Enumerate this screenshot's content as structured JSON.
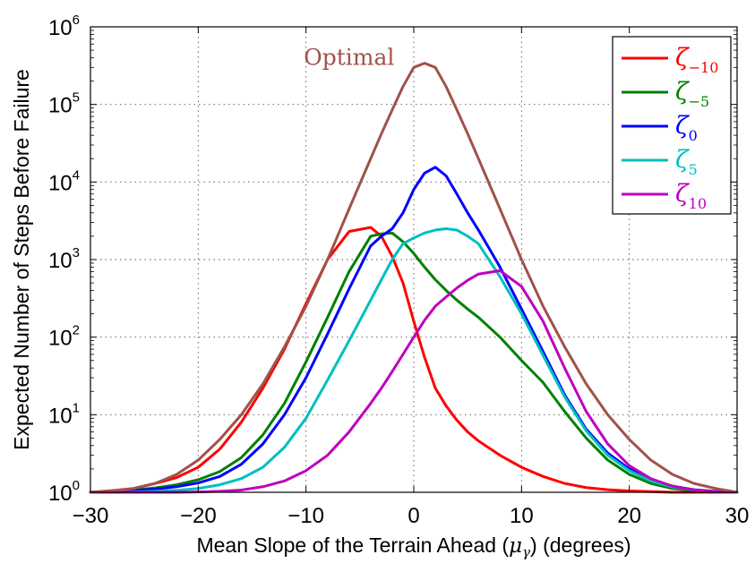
{
  "chart_data": {
    "type": "line",
    "title": "",
    "xlabel": "Mean Slope of the Terrain Ahead",
    "xlabel_symbol": "μ",
    "xlabel_symbol_sub": "γ",
    "xlabel_unit": "(degrees)",
    "ylabel": "Expected Number of Steps Before Failure",
    "xlim": [
      -30,
      30
    ],
    "ylim": [
      1,
      1000000
    ],
    "yscale": "log",
    "grid": true,
    "legend_position": "top-right",
    "x_ticks": [
      -30,
      -20,
      -10,
      0,
      10,
      20,
      30
    ],
    "x_tick_labels": [
      "−30",
      "−20",
      "−10",
      "0",
      "10",
      "20",
      "30"
    ],
    "y_ticks": [
      1,
      10,
      100,
      1000,
      10000,
      100000,
      1000000
    ],
    "y_tick_base": "10",
    "y_tick_exponents": [
      "0",
      "1",
      "2",
      "3",
      "4",
      "5",
      "6"
    ],
    "annotations": [
      {
        "text": "Optimal",
        "x": -6,
        "y": 400000,
        "color": "#A0524A"
      }
    ],
    "x": [
      -30,
      -28,
      -26,
      -24,
      -22,
      -20,
      -18,
      -16,
      -14,
      -12,
      -10,
      -8,
      -6,
      -4,
      -3,
      -2,
      -1,
      0,
      1,
      2,
      3,
      4,
      5,
      6,
      8,
      10,
      12,
      14,
      16,
      18,
      20,
      22,
      24,
      26,
      28,
      30
    ],
    "series": [
      {
        "name": "ζ",
        "subscript": "−10",
        "color": "#FF0000",
        "values": [
          1.0,
          1.05,
          1.12,
          1.3,
          1.55,
          2.1,
          3.6,
          8,
          22,
          70,
          270,
          1000,
          2300,
          2600,
          2000,
          1100,
          500,
          160,
          55,
          22,
          13,
          8.5,
          6.0,
          4.6,
          3.0,
          2.1,
          1.6,
          1.3,
          1.15,
          1.08,
          1.04,
          1.02,
          1.0,
          1.0,
          1.0,
          1.0
        ]
      },
      {
        "name": "ζ",
        "subscript": "−5",
        "color": "#008000",
        "values": [
          1.0,
          1.03,
          1.07,
          1.14,
          1.25,
          1.45,
          1.85,
          2.8,
          5.5,
          14,
          48,
          180,
          700,
          2000,
          2150,
          2200,
          1700,
          1200,
          800,
          550,
          400,
          300,
          230,
          180,
          100,
          50,
          26,
          11,
          5.0,
          2.6,
          1.7,
          1.3,
          1.12,
          1.05,
          1.02,
          1.0
        ]
      },
      {
        "name": "ζ",
        "subscript": "0",
        "color": "#0000FF",
        "values": [
          1.0,
          1.02,
          1.05,
          1.1,
          1.18,
          1.32,
          1.6,
          2.3,
          4.2,
          10,
          30,
          110,
          420,
          1500,
          2000,
          2500,
          4000,
          8000,
          13000,
          15500,
          12000,
          7000,
          4000,
          2400,
          800,
          230,
          65,
          18,
          6.5,
          3.2,
          2.0,
          1.45,
          1.2,
          1.08,
          1.03,
          1.0
        ]
      },
      {
        "name": "ζ",
        "subscript": "5",
        "color": "#00BFBF",
        "values": [
          1.0,
          1.0,
          1.01,
          1.03,
          1.06,
          1.12,
          1.25,
          1.5,
          2.1,
          3.8,
          9,
          28,
          90,
          300,
          550,
          1000,
          1600,
          1900,
          2200,
          2400,
          2500,
          2400,
          2000,
          1600,
          600,
          200,
          58,
          17,
          6.2,
          3.0,
          1.9,
          1.4,
          1.17,
          1.07,
          1.02,
          1.0
        ]
      },
      {
        "name": "ζ",
        "subscript": "10",
        "color": "#BF00BF",
        "values": [
          1.0,
          1.0,
          1.0,
          1.0,
          1.0,
          1.01,
          1.03,
          1.07,
          1.18,
          1.4,
          1.9,
          3.0,
          6.0,
          14,
          22,
          36,
          60,
          100,
          165,
          250,
          330,
          430,
          540,
          650,
          720,
          450,
          160,
          40,
          11,
          4.2,
          2.2,
          1.5,
          1.2,
          1.07,
          1.02,
          1.0
        ]
      },
      {
        "name": "Optimal",
        "color": "#A0524A",
        "values": [
          1.0,
          1.04,
          1.12,
          1.3,
          1.7,
          2.6,
          4.8,
          10,
          25,
          75,
          250,
          1000,
          4500,
          20000,
          42000,
          85000,
          170000,
          300000,
          340000,
          300000,
          170000,
          85000,
          42000,
          20000,
          4500,
          1000,
          250,
          75,
          25,
          10,
          4.8,
          2.6,
          1.7,
          1.3,
          1.12,
          1.0
        ]
      }
    ]
  }
}
